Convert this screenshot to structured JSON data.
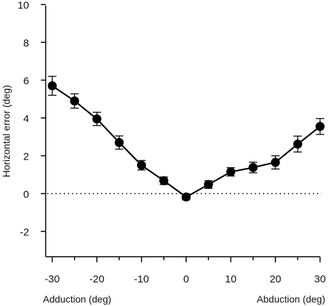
{
  "chart_data": {
    "type": "line",
    "ylabel": "Horizontal error (deg)",
    "xlabel_left": "Adduction (deg)",
    "xlabel_right": "Abduction (deg)",
    "xlim": [
      -30,
      30
    ],
    "ylim": [
      -3,
      10
    ],
    "x_ticks": [
      -30,
      -20,
      -10,
      0,
      10,
      20,
      30
    ],
    "x_tick_labels": [
      "-30",
      "-20",
      "-10",
      "0",
      "10",
      "20",
      "30"
    ],
    "y_ticks": [
      -2,
      0,
      2,
      4,
      6,
      8,
      10
    ],
    "y_tick_labels": [
      "-2",
      "0",
      "2",
      "4",
      "6",
      "8",
      "10"
    ],
    "reference_line": {
      "y": 0,
      "style": "dotted"
    },
    "series": [
      {
        "x": [
          -30,
          -25,
          -20,
          -15,
          -10,
          -5,
          0,
          5,
          10,
          15,
          20,
          25,
          30
        ],
        "y": [
          5.7,
          4.9,
          3.95,
          2.7,
          1.5,
          0.68,
          -0.18,
          0.48,
          1.15,
          1.38,
          1.65,
          2.62,
          3.55
        ],
        "error": [
          0.5,
          0.38,
          0.35,
          0.35,
          0.25,
          0.2,
          0.15,
          0.2,
          0.22,
          0.28,
          0.35,
          0.42,
          0.42
        ],
        "color": "#000000",
        "marker": "filled-circle"
      }
    ]
  }
}
